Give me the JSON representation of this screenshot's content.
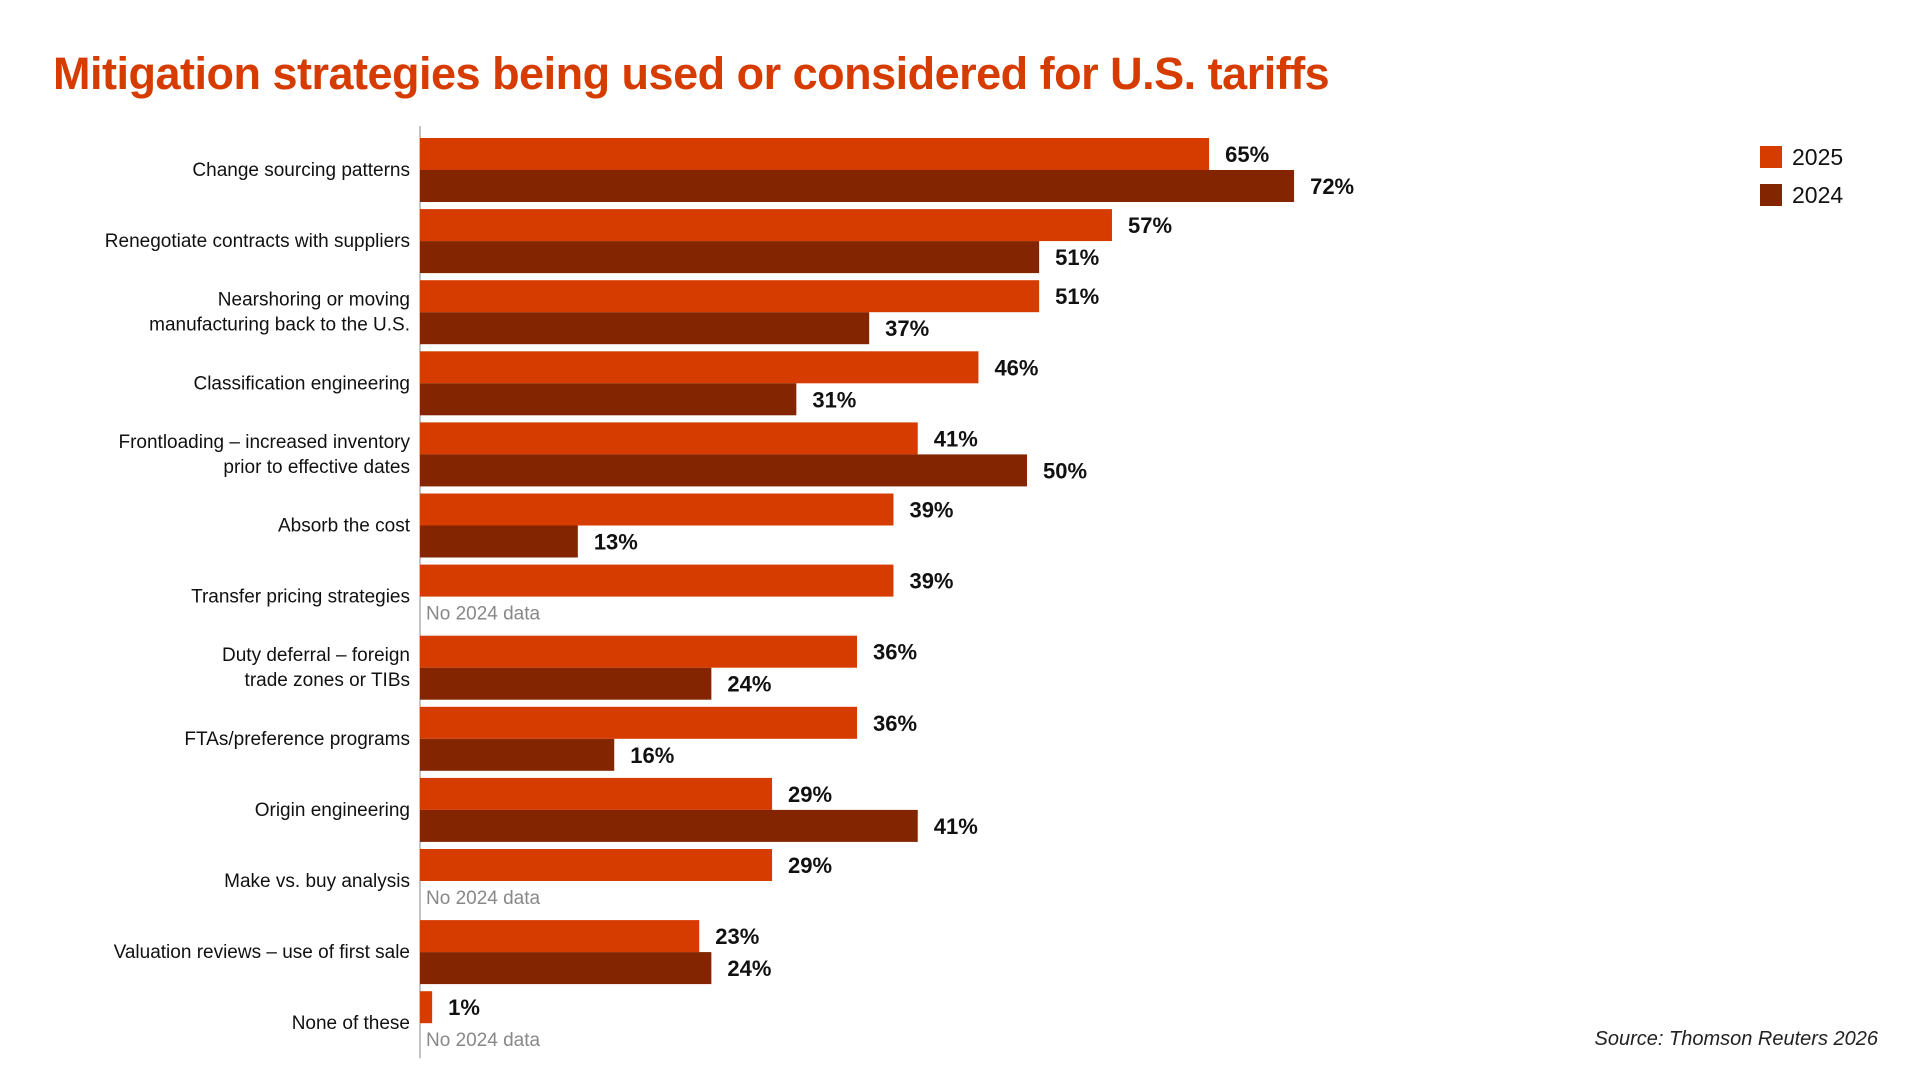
{
  "chart_data": {
    "type": "bar",
    "orientation": "horizontal",
    "title": "Mitigation strategies being used or considered for U.S. tariffs",
    "categories": [
      [
        "Change sourcing patterns"
      ],
      [
        "Renegotiate contracts with suppliers"
      ],
      [
        "Nearshoring or moving",
        "manufacturing back to the U.S."
      ],
      [
        "Classification engineering"
      ],
      [
        "Frontloading – increased inventory",
        "prior to effective dates"
      ],
      [
        "Absorb the cost"
      ],
      [
        "Transfer pricing strategies"
      ],
      [
        "Duty deferral – foreign",
        "trade zones or TIBs"
      ],
      [
        "FTAs/preference programs"
      ],
      [
        "Origin engineering"
      ],
      [
        "Make vs. buy analysis"
      ],
      [
        "Valuation reviews – use of first sale"
      ],
      [
        "None of these"
      ]
    ],
    "series": [
      {
        "name": "2025",
        "color": "#d63c00",
        "values": [
          65,
          57,
          51,
          46,
          41,
          39,
          39,
          36,
          36,
          29,
          29,
          23,
          1
        ]
      },
      {
        "name": "2024",
        "color": "#822500",
        "values": [
          72,
          51,
          37,
          31,
          50,
          13,
          null,
          24,
          16,
          41,
          null,
          24,
          null
        ]
      }
    ],
    "value_suffix": "%",
    "missing_label": "No 2024 data",
    "xlim": [
      0,
      100
    ],
    "grid": false,
    "legend_position": "top-right",
    "source": "Source: Thomson Reuters 2026"
  }
}
